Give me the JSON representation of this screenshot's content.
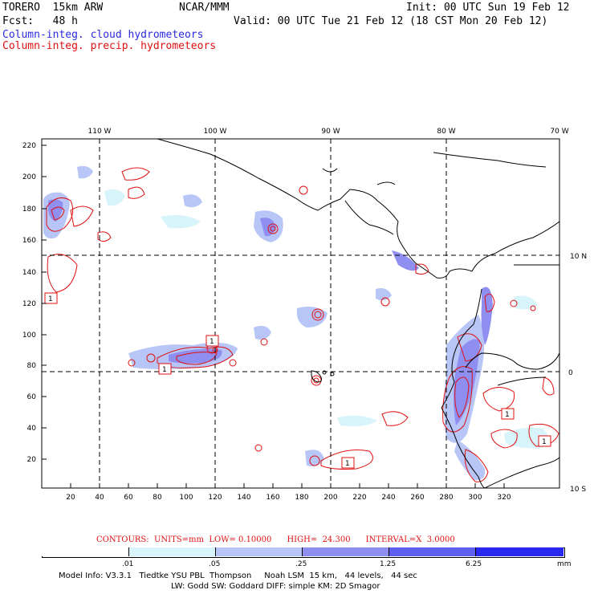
{
  "header": {
    "model": "TORERO  15km ARW",
    "org": "NCAR/MMM",
    "init": "Init: 00 UTC Sun 19 Feb 12",
    "fcst": "Fcst:   48 h",
    "valid": "Valid: 00 UTC Tue 21 Feb 12 (18 CST Mon 20 Feb 12)",
    "field1": "Column-integ. cloud hydrometeors",
    "field2": "Column-integ. precip. hydrometeors"
  },
  "map": {
    "lon_labels": [
      "110 W",
      "100 W",
      "90 W",
      "80 W",
      "70 W"
    ],
    "lat_labels": [
      "10 N",
      "0",
      "10 S"
    ],
    "y_ticks": [
      "220",
      "200",
      "180",
      "160",
      "140",
      "120",
      "100",
      "80",
      "60",
      "40",
      "20"
    ],
    "x_ticks": [
      "20",
      "40",
      "60",
      "80",
      "100",
      "120",
      "140",
      "160",
      "180",
      "200",
      "220",
      "240",
      "260",
      "280",
      "300",
      "320"
    ],
    "box_labels": [
      "1",
      "1",
      "1",
      "1",
      "1",
      "1"
    ]
  },
  "contours_text": "CONTOURS:  UNITS=mm  LOW= 0.10000      HIGH=  24.300      INTERVAL=X  3.0000",
  "colorbar": {
    "labels": [
      ".01",
      ".05",
      ".25",
      "1.25",
      "6.25"
    ],
    "units": "mm",
    "colors": [
      "#ffffff",
      "#d8f4fb",
      "#b7c5f7",
      "#8f8ff2",
      "#6060f0",
      "#2828f0"
    ]
  },
  "footer": {
    "line1": "Model Info: V3.3.1   Tiedtke YSU PBL  Thompson     Noah LSM  15 km,   44 levels,   44 sec",
    "line2": "LW: Godd SW: Goddard DIFF: simple KM: 2D Smagor"
  }
}
